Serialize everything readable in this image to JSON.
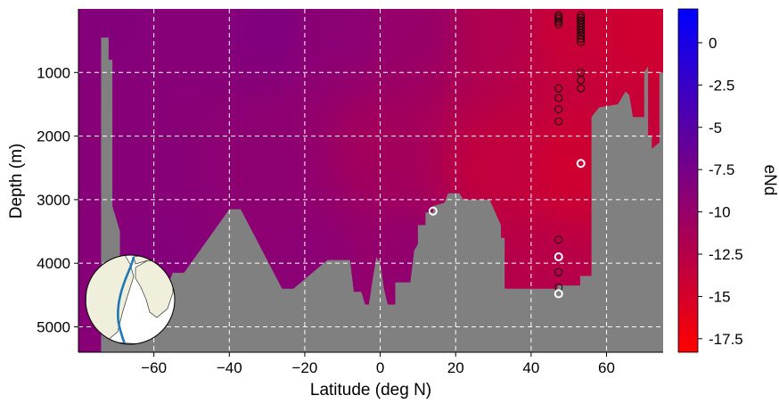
{
  "chart_data": {
    "type": "heatmap",
    "title": "",
    "xlabel": "Latitude (deg N)",
    "ylabel": "Depth (m)",
    "xlim": [
      -80,
      75
    ],
    "ylim": [
      5400,
      0
    ],
    "y_inverted": true,
    "grid": true,
    "x_ticks": [
      -60,
      -40,
      -20,
      0,
      20,
      40,
      60
    ],
    "y_ticks": [
      1000,
      2000,
      3000,
      4000,
      5000
    ],
    "colorbar": {
      "label": "eNd",
      "range": [
        -18.3,
        2.0
      ],
      "ticks": [
        0,
        -2.5,
        -5,
        -7.5,
        -10,
        -12.5,
        -15,
        -17.5
      ],
      "tick_labels": [
        "0",
        "-2.5",
        "-5",
        "-7.5",
        "-10",
        "-12.5",
        "-15",
        "-17.5"
      ],
      "colormap": [
        "#ff0000",
        "#0000ff"
      ]
    },
    "field_samples": [
      {
        "lat": -70,
        "depth": 200,
        "eNd": -8.5
      },
      {
        "lat": -50,
        "depth": 200,
        "eNd": -8.8
      },
      {
        "lat": -30,
        "depth": 300,
        "eNd": -8.2
      },
      {
        "lat": -10,
        "depth": 300,
        "eNd": -9.0
      },
      {
        "lat": 10,
        "depth": 300,
        "eNd": -10.0
      },
      {
        "lat": 30,
        "depth": 300,
        "eNd": -12.0
      },
      {
        "lat": 50,
        "depth": 300,
        "eNd": -14.0
      },
      {
        "lat": 70,
        "depth": 300,
        "eNd": -14.5
      },
      {
        "lat": -60,
        "depth": 2500,
        "eNd": -8.8
      },
      {
        "lat": -30,
        "depth": 2500,
        "eNd": -9.2
      },
      {
        "lat": 0,
        "depth": 2200,
        "eNd": -11.0
      },
      {
        "lat": 30,
        "depth": 2500,
        "eNd": -13.5
      },
      {
        "lat": 50,
        "depth": 2500,
        "eNd": -14.5
      },
      {
        "lat": -60,
        "depth": 4000,
        "eNd": -8.5
      },
      {
        "lat": -20,
        "depth": 4000,
        "eNd": -9.0
      },
      {
        "lat": 10,
        "depth": 4000,
        "eNd": -9.5
      },
      {
        "lat": 45,
        "depth": 4300,
        "eNd": -12.5
      }
    ],
    "bathymetry": [
      [
        -80,
        5400
      ],
      [
        -74,
        5400
      ],
      [
        -74,
        450
      ],
      [
        -72,
        450
      ],
      [
        -72,
        800
      ],
      [
        -71,
        800
      ],
      [
        -71,
        3100
      ],
      [
        -69,
        3500
      ],
      [
        -69,
        4150
      ],
      [
        -66,
        4150
      ],
      [
        -66,
        4500
      ],
      [
        -64,
        4500
      ],
      [
        -64,
        4600
      ],
      [
        -58,
        4600
      ],
      [
        -55,
        4150
      ],
      [
        -52,
        4150
      ],
      [
        -40,
        3150
      ],
      [
        -37,
        3150
      ],
      [
        -26,
        4400
      ],
      [
        -23,
        4400
      ],
      [
        -14,
        3950
      ],
      [
        -8,
        3950
      ],
      [
        -7,
        4450
      ],
      [
        -5,
        4450
      ],
      [
        -4,
        4650
      ],
      [
        -3,
        4650
      ],
      [
        -2,
        4250
      ],
      [
        -1,
        3900
      ],
      [
        0,
        4000
      ],
      [
        1,
        4400
      ],
      [
        2,
        4650
      ],
      [
        4,
        4650
      ],
      [
        4,
        4300
      ],
      [
        8,
        4300
      ],
      [
        9,
        3800
      ],
      [
        10,
        3700
      ],
      [
        10,
        3400
      ],
      [
        12,
        3400
      ],
      [
        12,
        3200
      ],
      [
        14,
        3200
      ],
      [
        14,
        3100
      ],
      [
        17,
        3050
      ],
      [
        18,
        2900
      ],
      [
        21,
        2900
      ],
      [
        22,
        3000
      ],
      [
        29,
        3000
      ],
      [
        32,
        3400
      ],
      [
        32,
        3600
      ],
      [
        33,
        3600
      ],
      [
        33,
        4400
      ],
      [
        47,
        4400
      ],
      [
        47,
        4350
      ],
      [
        53,
        4350
      ],
      [
        53,
        4200
      ],
      [
        56,
        4200
      ],
      [
        56,
        1700
      ],
      [
        58,
        1550
      ],
      [
        63,
        1500
      ],
      [
        65,
        1300
      ],
      [
        66,
        1350
      ],
      [
        67,
        1700
      ],
      [
        70,
        1700
      ],
      [
        70,
        1000
      ],
      [
        71,
        900
      ],
      [
        71,
        2000
      ],
      [
        72,
        2000
      ],
      [
        72,
        2200
      ],
      [
        74,
        2100
      ],
      [
        74,
        1000
      ],
      [
        75,
        1000
      ],
      [
        75,
        5400
      ]
    ],
    "stations": [
      {
        "lat": 47.3,
        "depth": 100,
        "style": "black"
      },
      {
        "lat": 47.3,
        "depth": 130,
        "style": "black"
      },
      {
        "lat": 47.3,
        "depth": 160,
        "style": "black"
      },
      {
        "lat": 47.3,
        "depth": 200,
        "style": "black"
      },
      {
        "lat": 47.3,
        "depth": 240,
        "style": "black"
      },
      {
        "lat": 47.3,
        "depth": 1250,
        "style": "black"
      },
      {
        "lat": 47.3,
        "depth": 1400,
        "style": "black"
      },
      {
        "lat": 47.3,
        "depth": 1580,
        "style": "black"
      },
      {
        "lat": 47.3,
        "depth": 1770,
        "style": "black"
      },
      {
        "lat": 47.3,
        "depth": 3630,
        "style": "black"
      },
      {
        "lat": 47.3,
        "depth": 4140,
        "style": "black"
      },
      {
        "lat": 47.3,
        "depth": 4380,
        "style": "black"
      },
      {
        "lat": 47.3,
        "depth": 3900,
        "style": "white"
      },
      {
        "lat": 47.3,
        "depth": 4480,
        "style": "white"
      },
      {
        "lat": 53.2,
        "depth": 100,
        "style": "black"
      },
      {
        "lat": 53.2,
        "depth": 140,
        "style": "black"
      },
      {
        "lat": 53.2,
        "depth": 180,
        "style": "black"
      },
      {
        "lat": 53.2,
        "depth": 220,
        "style": "black"
      },
      {
        "lat": 53.2,
        "depth": 260,
        "style": "black"
      },
      {
        "lat": 53.2,
        "depth": 300,
        "style": "black"
      },
      {
        "lat": 53.2,
        "depth": 340,
        "style": "black"
      },
      {
        "lat": 53.2,
        "depth": 380,
        "style": "black"
      },
      {
        "lat": 53.2,
        "depth": 420,
        "style": "black"
      },
      {
        "lat": 53.2,
        "depth": 470,
        "style": "black"
      },
      {
        "lat": 53.2,
        "depth": 520,
        "style": "black"
      },
      {
        "lat": 53.2,
        "depth": 1000,
        "style": "black"
      },
      {
        "lat": 53.2,
        "depth": 1120,
        "style": "black"
      },
      {
        "lat": 53.2,
        "depth": 1250,
        "style": "black"
      },
      {
        "lat": 53.2,
        "depth": 2430,
        "style": "white"
      },
      {
        "lat": 14.0,
        "depth": 3180,
        "style": "white"
      }
    ],
    "inset_map": {
      "type": "globe",
      "transect_color": "#1f77b4"
    }
  },
  "colors": {
    "seafloor": "#808080",
    "grid": "#ffffff",
    "transect": "#1f77b4",
    "land": "#efefdc"
  }
}
